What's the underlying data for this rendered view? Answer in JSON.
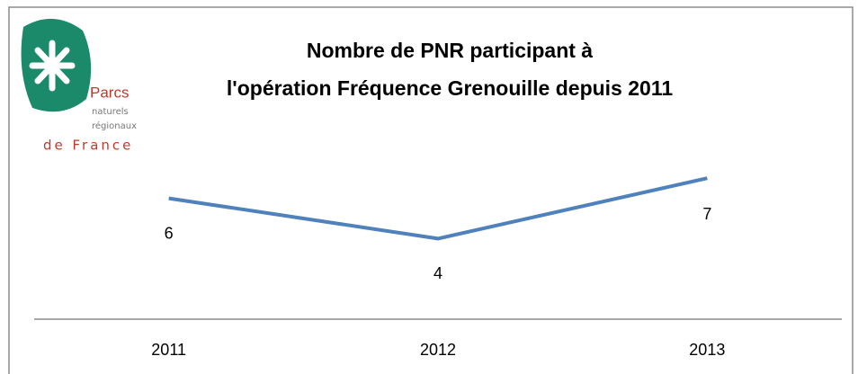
{
  "chart_data": {
    "type": "line",
    "title": [
      "Nombre de PNR participant à",
      "l'opération Fréquence Grenouille depuis 2011"
    ],
    "logo": {
      "lines": [
        "Parcs",
        "naturels",
        "régionaux",
        "de France"
      ]
    },
    "categories": [
      "2011",
      "2012",
      "2013"
    ],
    "series": [
      {
        "name": "Nombre de PNR",
        "color": "#4f81bd",
        "values": [
          6,
          4,
          7
        ]
      }
    ]
  }
}
